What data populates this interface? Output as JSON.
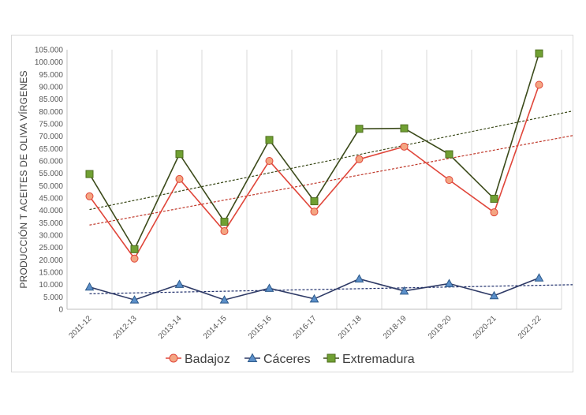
{
  "chart_data": {
    "type": "line",
    "title": "",
    "xlabel": "",
    "ylabel": "PRODUCCIÓN T ACEITES DE OLIVA VÍRGENES",
    "categories": [
      "2011-12",
      "2012-13",
      "2013-14",
      "2014-15",
      "2015-16",
      "2016-17",
      "2017-18",
      "2018-19",
      "2019-20",
      "2020-21",
      "2021-22"
    ],
    "ylim": [
      0,
      105000
    ],
    "ytick_step": 5000,
    "ytick_labels": [
      "0",
      "5.000",
      "10.000",
      "15.000",
      "20.000",
      "25.000",
      "30.000",
      "35.000",
      "40.000",
      "45.000",
      "50.000",
      "55.000",
      "60.000",
      "65.000",
      "70.000",
      "75.000",
      "80.000",
      "85.000",
      "90.000",
      "95.000",
      "100.000",
      "105.000"
    ],
    "gridlines": "vertical",
    "legend_position": "bottom",
    "series": [
      {
        "name": "Badajoz",
        "marker": "circle",
        "line_color": "#e0463a",
        "marker_fill": "#f4a582",
        "marker_stroke": "#e0463a",
        "trendline_color": "#c0392b",
        "values": [
          45700,
          20500,
          52700,
          31600,
          60000,
          39500,
          60700,
          65800,
          52300,
          39200,
          90800
        ]
      },
      {
        "name": "Cáceres",
        "marker": "triangle",
        "line_color": "#2e3a66",
        "marker_fill": "#5b8fc9",
        "marker_stroke": "#2e5a8a",
        "trendline_color": "#1f2f6b",
        "values": [
          9000,
          3800,
          10100,
          3800,
          8500,
          4200,
          12300,
          7400,
          10400,
          5500,
          12700
        ]
      },
      {
        "name": "Extremadura",
        "marker": "square",
        "line_color": "#3b4a1a",
        "marker_fill": "#70a033",
        "marker_stroke": "#4e6e1e",
        "trendline_color": "#3b4a1a",
        "values": [
          54700,
          24300,
          62800,
          35400,
          68500,
          43700,
          73000,
          73200,
          62700,
          44700,
          103500
        ]
      }
    ]
  }
}
